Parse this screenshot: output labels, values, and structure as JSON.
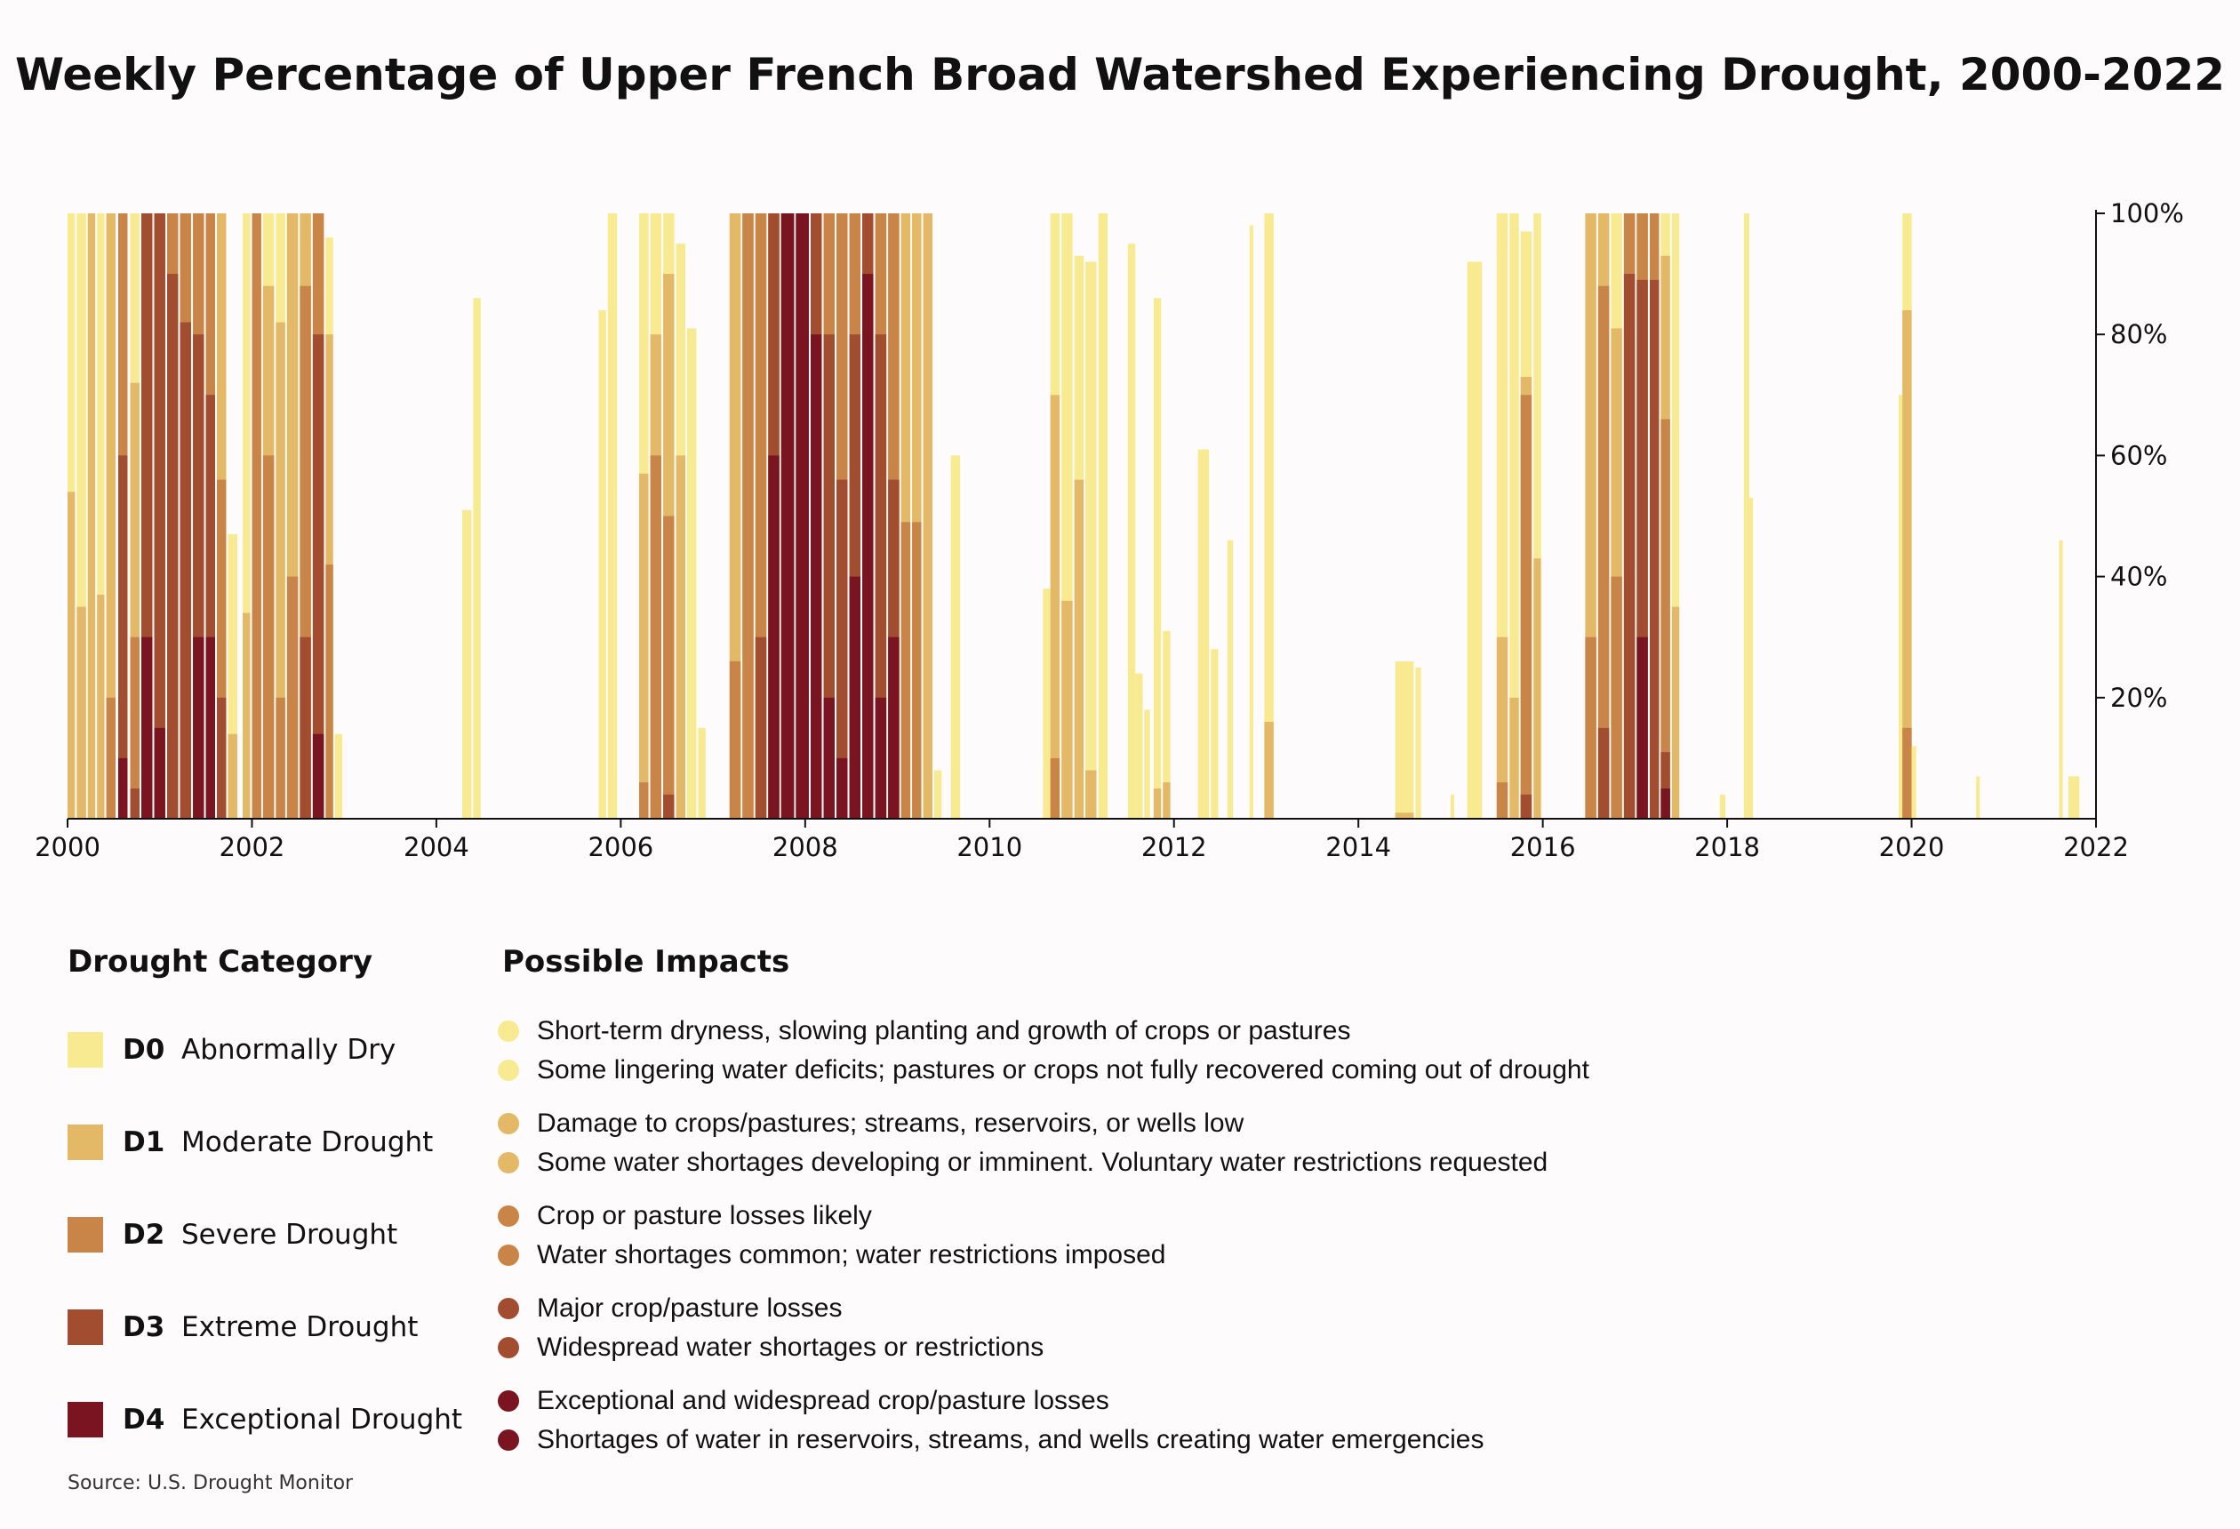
{
  "title": "Weekly Percentage of Upper French Broad Watershed Experiencing Drought, 2000-2022",
  "source": "Source: U.S. Drought Monitor",
  "colors": {
    "D0": "#f8ea91",
    "D1": "#e3b867",
    "D2": "#c98447",
    "D3": "#a24c30",
    "D4": "#7a1420"
  },
  "legend": {
    "category_heading": "Drought Category",
    "impacts_heading": "Possible Impacts",
    "categories": [
      {
        "code": "D0",
        "name": "Abnormally Dry",
        "impacts": [
          "Short-term dryness, slowing planting and growth of crops or pastures",
          "Some lingering water deficits; pastures or crops not fully recovered coming out of drought"
        ]
      },
      {
        "code": "D1",
        "name": "Moderate Drought",
        "impacts": [
          "Damage to crops/pastures; streams, reservoirs, or wells low",
          "Some water shortages developing or imminent. Voluntary water restrictions requested"
        ]
      },
      {
        "code": "D2",
        "name": "Severe Drought",
        "impacts": [
          "Crop or pasture losses likely",
          "Water shortages common; water restrictions imposed"
        ]
      },
      {
        "code": "D3",
        "name": "Extreme Drought",
        "impacts": [
          "Major crop/pasture losses",
          "Widespread water shortages or restrictions"
        ]
      },
      {
        "code": "D4",
        "name": "Exceptional Drought",
        "impacts": [
          "Exceptional and widespread crop/pasture losses",
          "Shortages of water in reservoirs, streams, and wells creating water emergencies"
        ]
      }
    ]
  },
  "chart_data": {
    "type": "area",
    "x_axis": {
      "min": 2000,
      "max": 2022,
      "ticks": [
        2000,
        2002,
        2004,
        2006,
        2008,
        2010,
        2012,
        2014,
        2016,
        2018,
        2020,
        2022
      ],
      "tick_labels": [
        "2000",
        "2002",
        "2004",
        "2006",
        "2008",
        "2010",
        "2012",
        "2014",
        "2016",
        "2018",
        "2020",
        "2022"
      ]
    },
    "y_axis": {
      "min": 0,
      "max": 100,
      "ticks": [
        20,
        40,
        60,
        80,
        100
      ],
      "tick_labels": [
        "20%",
        "40%",
        "60%",
        "80%",
        "100%"
      ],
      "position": "right"
    },
    "grid": false,
    "series_order": [
      "D0",
      "D1",
      "D2",
      "D3",
      "D4"
    ],
    "bars": [
      {
        "x": 2000.0,
        "w": 0.08,
        "D0": 100,
        "D1": 54,
        "D2": 0,
        "D3": 0,
        "D4": 0
      },
      {
        "x": 2000.1,
        "w": 0.1,
        "D0": 100,
        "D1": 35,
        "D2": 0,
        "D3": 0,
        "D4": 0
      },
      {
        "x": 2000.22,
        "w": 0.08,
        "D0": 100,
        "D1": 100,
        "D2": 0,
        "D3": 0,
        "D4": 0
      },
      {
        "x": 2000.32,
        "w": 0.08,
        "D0": 100,
        "D1": 37,
        "D2": 0,
        "D3": 0,
        "D4": 0
      },
      {
        "x": 2000.42,
        "w": 0.1,
        "D0": 100,
        "D1": 100,
        "D2": 20,
        "D3": 0,
        "D4": 0
      },
      {
        "x": 2000.55,
        "w": 0.1,
        "D0": 100,
        "D1": 100,
        "D2": 100,
        "D3": 60,
        "D4": 10
      },
      {
        "x": 2000.68,
        "w": 0.1,
        "D0": 100,
        "D1": 72,
        "D2": 30,
        "D3": 5,
        "D4": 0
      },
      {
        "x": 2000.8,
        "w": 0.12,
        "D0": 100,
        "D1": 100,
        "D2": 100,
        "D3": 100,
        "D4": 30
      },
      {
        "x": 2000.94,
        "w": 0.12,
        "D0": 100,
        "D1": 100,
        "D2": 100,
        "D3": 100,
        "D4": 15
      },
      {
        "x": 2001.08,
        "w": 0.12,
        "D0": 100,
        "D1": 100,
        "D2": 100,
        "D3": 90,
        "D4": 0
      },
      {
        "x": 2001.22,
        "w": 0.12,
        "D0": 100,
        "D1": 100,
        "D2": 100,
        "D3": 82,
        "D4": 0
      },
      {
        "x": 2001.36,
        "w": 0.12,
        "D0": 100,
        "D1": 100,
        "D2": 100,
        "D3": 80,
        "D4": 30
      },
      {
        "x": 2001.5,
        "w": 0.1,
        "D0": 100,
        "D1": 100,
        "D2": 100,
        "D3": 70,
        "D4": 30
      },
      {
        "x": 2001.62,
        "w": 0.1,
        "D0": 100,
        "D1": 100,
        "D2": 56,
        "D3": 20,
        "D4": 0
      },
      {
        "x": 2001.74,
        "w": 0.1,
        "D0": 47,
        "D1": 14,
        "D2": 0,
        "D3": 0,
        "D4": 0
      },
      {
        "x": 2001.9,
        "w": 0.08,
        "D0": 100,
        "D1": 34,
        "D2": 0,
        "D3": 0,
        "D4": 0
      },
      {
        "x": 2002.0,
        "w": 0.1,
        "D0": 100,
        "D1": 100,
        "D2": 100,
        "D3": 0,
        "D4": 0
      },
      {
        "x": 2002.12,
        "w": 0.12,
        "D0": 100,
        "D1": 88,
        "D2": 60,
        "D3": 0,
        "D4": 0
      },
      {
        "x": 2002.26,
        "w": 0.1,
        "D0": 100,
        "D1": 82,
        "D2": 20,
        "D3": 0,
        "D4": 0
      },
      {
        "x": 2002.38,
        "w": 0.12,
        "D0": 100,
        "D1": 100,
        "D2": 40,
        "D3": 0,
        "D4": 0
      },
      {
        "x": 2002.52,
        "w": 0.12,
        "D0": 100,
        "D1": 100,
        "D2": 88,
        "D3": 30,
        "D4": 0
      },
      {
        "x": 2002.66,
        "w": 0.12,
        "D0": 100,
        "D1": 100,
        "D2": 100,
        "D3": 80,
        "D4": 14
      },
      {
        "x": 2002.8,
        "w": 0.08,
        "D0": 96,
        "D1": 80,
        "D2": 42,
        "D3": 0,
        "D4": 0
      },
      {
        "x": 2002.9,
        "w": 0.08,
        "D0": 14,
        "D1": 0,
        "D2": 0,
        "D3": 0,
        "D4": 0
      },
      {
        "x": 2004.28,
        "w": 0.1,
        "D0": 51,
        "D1": 0,
        "D2": 0,
        "D3": 0,
        "D4": 0
      },
      {
        "x": 2004.4,
        "w": 0.08,
        "D0": 86,
        "D1": 0,
        "D2": 0,
        "D3": 0,
        "D4": 0
      },
      {
        "x": 2005.76,
        "w": 0.08,
        "D0": 84,
        "D1": 0,
        "D2": 0,
        "D3": 0,
        "D4": 0
      },
      {
        "x": 2005.86,
        "w": 0.1,
        "D0": 100,
        "D1": 0,
        "D2": 0,
        "D3": 0,
        "D4": 0
      },
      {
        "x": 2006.2,
        "w": 0.1,
        "D0": 100,
        "D1": 57,
        "D2": 6,
        "D3": 0,
        "D4": 0
      },
      {
        "x": 2006.32,
        "w": 0.12,
        "D0": 100,
        "D1": 80,
        "D2": 60,
        "D3": 0,
        "D4": 0
      },
      {
        "x": 2006.46,
        "w": 0.12,
        "D0": 100,
        "D1": 90,
        "D2": 50,
        "D3": 4,
        "D4": 0
      },
      {
        "x": 2006.6,
        "w": 0.1,
        "D0": 95,
        "D1": 60,
        "D2": 0,
        "D3": 0,
        "D4": 0
      },
      {
        "x": 2006.72,
        "w": 0.1,
        "D0": 81,
        "D1": 0,
        "D2": 0,
        "D3": 0,
        "D4": 0
      },
      {
        "x": 2006.84,
        "w": 0.08,
        "D0": 15,
        "D1": 0,
        "D2": 0,
        "D3": 0,
        "D4": 0
      },
      {
        "x": 2007.18,
        "w": 0.12,
        "D0": 100,
        "D1": 100,
        "D2": 26,
        "D3": 0,
        "D4": 0
      },
      {
        "x": 2007.32,
        "w": 0.12,
        "D0": 100,
        "D1": 100,
        "D2": 100,
        "D3": 0,
        "D4": 0
      },
      {
        "x": 2007.46,
        "w": 0.12,
        "D0": 100,
        "D1": 100,
        "D2": 100,
        "D3": 30,
        "D4": 0
      },
      {
        "x": 2007.6,
        "w": 0.12,
        "D0": 100,
        "D1": 100,
        "D2": 100,
        "D3": 100,
        "D4": 60
      },
      {
        "x": 2007.74,
        "w": 0.14,
        "D0": 100,
        "D1": 100,
        "D2": 100,
        "D3": 100,
        "D4": 100
      },
      {
        "x": 2007.9,
        "w": 0.14,
        "D0": 100,
        "D1": 100,
        "D2": 100,
        "D3": 100,
        "D4": 100
      },
      {
        "x": 2008.06,
        "w": 0.12,
        "D0": 100,
        "D1": 100,
        "D2": 100,
        "D3": 100,
        "D4": 80
      },
      {
        "x": 2008.2,
        "w": 0.12,
        "D0": 100,
        "D1": 100,
        "D2": 100,
        "D3": 80,
        "D4": 20
      },
      {
        "x": 2008.34,
        "w": 0.12,
        "D0": 100,
        "D1": 100,
        "D2": 100,
        "D3": 56,
        "D4": 10
      },
      {
        "x": 2008.48,
        "w": 0.12,
        "D0": 100,
        "D1": 100,
        "D2": 100,
        "D3": 80,
        "D4": 40
      },
      {
        "x": 2008.62,
        "w": 0.12,
        "D0": 100,
        "D1": 100,
        "D2": 100,
        "D3": 100,
        "D4": 90
      },
      {
        "x": 2008.76,
        "w": 0.12,
        "D0": 100,
        "D1": 100,
        "D2": 100,
        "D3": 80,
        "D4": 20
      },
      {
        "x": 2008.9,
        "w": 0.12,
        "D0": 100,
        "D1": 100,
        "D2": 100,
        "D3": 56,
        "D4": 30
      },
      {
        "x": 2009.04,
        "w": 0.1,
        "D0": 100,
        "D1": 100,
        "D2": 49,
        "D3": 0,
        "D4": 0
      },
      {
        "x": 2009.16,
        "w": 0.1,
        "D0": 100,
        "D1": 100,
        "D2": 49,
        "D3": 0,
        "D4": 0
      },
      {
        "x": 2009.28,
        "w": 0.1,
        "D0": 100,
        "D1": 100,
        "D2": 0,
        "D3": 0,
        "D4": 0
      },
      {
        "x": 2009.4,
        "w": 0.08,
        "D0": 8,
        "D1": 0,
        "D2": 0,
        "D3": 0,
        "D4": 0
      },
      {
        "x": 2009.58,
        "w": 0.1,
        "D0": 60,
        "D1": 0,
        "D2": 0,
        "D3": 0,
        "D4": 0
      },
      {
        "x": 2010.58,
        "w": 0.08,
        "D0": 38,
        "D1": 0,
        "D2": 0,
        "D3": 0,
        "D4": 0
      },
      {
        "x": 2010.66,
        "w": 0.1,
        "D0": 100,
        "D1": 70,
        "D2": 10,
        "D3": 0,
        "D4": 0
      },
      {
        "x": 2010.78,
        "w": 0.12,
        "D0": 100,
        "D1": 36,
        "D2": 0,
        "D3": 0,
        "D4": 0
      },
      {
        "x": 2010.92,
        "w": 0.1,
        "D0": 93,
        "D1": 56,
        "D2": 0,
        "D3": 0,
        "D4": 0
      },
      {
        "x": 2011.04,
        "w": 0.12,
        "D0": 92,
        "D1": 8,
        "D2": 0,
        "D3": 0,
        "D4": 0
      },
      {
        "x": 2011.18,
        "w": 0.1,
        "D0": 100,
        "D1": 0,
        "D2": 0,
        "D3": 0,
        "D4": 0
      },
      {
        "x": 2011.5,
        "w": 0.08,
        "D0": 95,
        "D1": 0,
        "D2": 0,
        "D3": 0,
        "D4": 0
      },
      {
        "x": 2011.58,
        "w": 0.08,
        "D0": 24,
        "D1": 0,
        "D2": 0,
        "D3": 0,
        "D4": 0
      },
      {
        "x": 2011.68,
        "w": 0.06,
        "D0": 18,
        "D1": 0,
        "D2": 0,
        "D3": 0,
        "D4": 0
      },
      {
        "x": 2011.78,
        "w": 0.08,
        "D0": 86,
        "D1": 5,
        "D2": 0,
        "D3": 0,
        "D4": 0
      },
      {
        "x": 2011.88,
        "w": 0.08,
        "D0": 31,
        "D1": 6,
        "D2": 0,
        "D3": 0,
        "D4": 0
      },
      {
        "x": 2012.26,
        "w": 0.12,
        "D0": 61,
        "D1": 0,
        "D2": 0,
        "D3": 0,
        "D4": 0
      },
      {
        "x": 2012.4,
        "w": 0.08,
        "D0": 28,
        "D1": 0,
        "D2": 0,
        "D3": 0,
        "D4": 0
      },
      {
        "x": 2012.58,
        "w": 0.06,
        "D0": 46,
        "D1": 0,
        "D2": 0,
        "D3": 0,
        "D4": 0
      },
      {
        "x": 2012.82,
        "w": 0.04,
        "D0": 98,
        "D1": 0,
        "D2": 0,
        "D3": 0,
        "D4": 0
      },
      {
        "x": 2012.98,
        "w": 0.1,
        "D0": 100,
        "D1": 16,
        "D2": 0,
        "D3": 0,
        "D4": 0
      },
      {
        "x": 2014.4,
        "w": 0.2,
        "D0": 26,
        "D1": 1,
        "D2": 0,
        "D3": 0,
        "D4": 0
      },
      {
        "x": 2014.62,
        "w": 0.06,
        "D0": 25,
        "D1": 0,
        "D2": 0,
        "D3": 0,
        "D4": 0
      },
      {
        "x": 2015.0,
        "w": 0.04,
        "D0": 4,
        "D1": 0,
        "D2": 0,
        "D3": 0,
        "D4": 0
      },
      {
        "x": 2015.18,
        "w": 0.16,
        "D0": 92,
        "D1": 0,
        "D2": 0,
        "D3": 0,
        "D4": 0
      },
      {
        "x": 2015.5,
        "w": 0.12,
        "D0": 100,
        "D1": 30,
        "D2": 6,
        "D3": 0,
        "D4": 0
      },
      {
        "x": 2015.64,
        "w": 0.1,
        "D0": 100,
        "D1": 20,
        "D2": 0,
        "D3": 0,
        "D4": 0
      },
      {
        "x": 2015.76,
        "w": 0.12,
        "D0": 97,
        "D1": 73,
        "D2": 70,
        "D3": 4,
        "D4": 0
      },
      {
        "x": 2015.9,
        "w": 0.08,
        "D0": 100,
        "D1": 43,
        "D2": 0,
        "D3": 0,
        "D4": 0
      },
      {
        "x": 2016.46,
        "w": 0.12,
        "D0": 100,
        "D1": 100,
        "D2": 30,
        "D3": 0,
        "D4": 0
      },
      {
        "x": 2016.6,
        "w": 0.12,
        "D0": 100,
        "D1": 100,
        "D2": 88,
        "D3": 15,
        "D4": 0
      },
      {
        "x": 2016.74,
        "w": 0.12,
        "D0": 100,
        "D1": 81,
        "D2": 40,
        "D3": 0,
        "D4": 0
      },
      {
        "x": 2016.88,
        "w": 0.12,
        "D0": 100,
        "D1": 100,
        "D2": 100,
        "D3": 90,
        "D4": 0
      },
      {
        "x": 2017.02,
        "w": 0.12,
        "D0": 100,
        "D1": 100,
        "D2": 100,
        "D3": 89,
        "D4": 30
      },
      {
        "x": 2017.16,
        "w": 0.1,
        "D0": 100,
        "D1": 100,
        "D2": 100,
        "D3": 89,
        "D4": 0
      },
      {
        "x": 2017.28,
        "w": 0.1,
        "D0": 100,
        "D1": 93,
        "D2": 66,
        "D3": 11,
        "D4": 5
      },
      {
        "x": 2017.4,
        "w": 0.08,
        "D0": 100,
        "D1": 35,
        "D2": 0,
        "D3": 0,
        "D4": 0
      },
      {
        "x": 2017.92,
        "w": 0.06,
        "D0": 4,
        "D1": 0,
        "D2": 0,
        "D3": 0,
        "D4": 0
      },
      {
        "x": 2018.18,
        "w": 0.06,
        "D0": 100,
        "D1": 0,
        "D2": 0,
        "D3": 0,
        "D4": 0
      },
      {
        "x": 2018.24,
        "w": 0.04,
        "D0": 53,
        "D1": 0,
        "D2": 0,
        "D3": 0,
        "D4": 0
      },
      {
        "x": 2019.86,
        "w": 0.04,
        "D0": 70,
        "D1": 0,
        "D2": 0,
        "D3": 0,
        "D4": 0
      },
      {
        "x": 2019.9,
        "w": 0.1,
        "D0": 100,
        "D1": 84,
        "D2": 15,
        "D3": 0,
        "D4": 0
      },
      {
        "x": 2020.0,
        "w": 0.05,
        "D0": 12,
        "D1": 0,
        "D2": 0,
        "D3": 0,
        "D4": 0
      },
      {
        "x": 2020.7,
        "w": 0.04,
        "D0": 7,
        "D1": 0,
        "D2": 0,
        "D3": 0,
        "D4": 0
      },
      {
        "x": 2021.6,
        "w": 0.04,
        "D0": 46,
        "D1": 0,
        "D2": 0,
        "D3": 0,
        "D4": 0
      },
      {
        "x": 2021.7,
        "w": 0.12,
        "D0": 7,
        "D1": 0,
        "D2": 0,
        "D3": 0,
        "D4": 0
      }
    ]
  }
}
